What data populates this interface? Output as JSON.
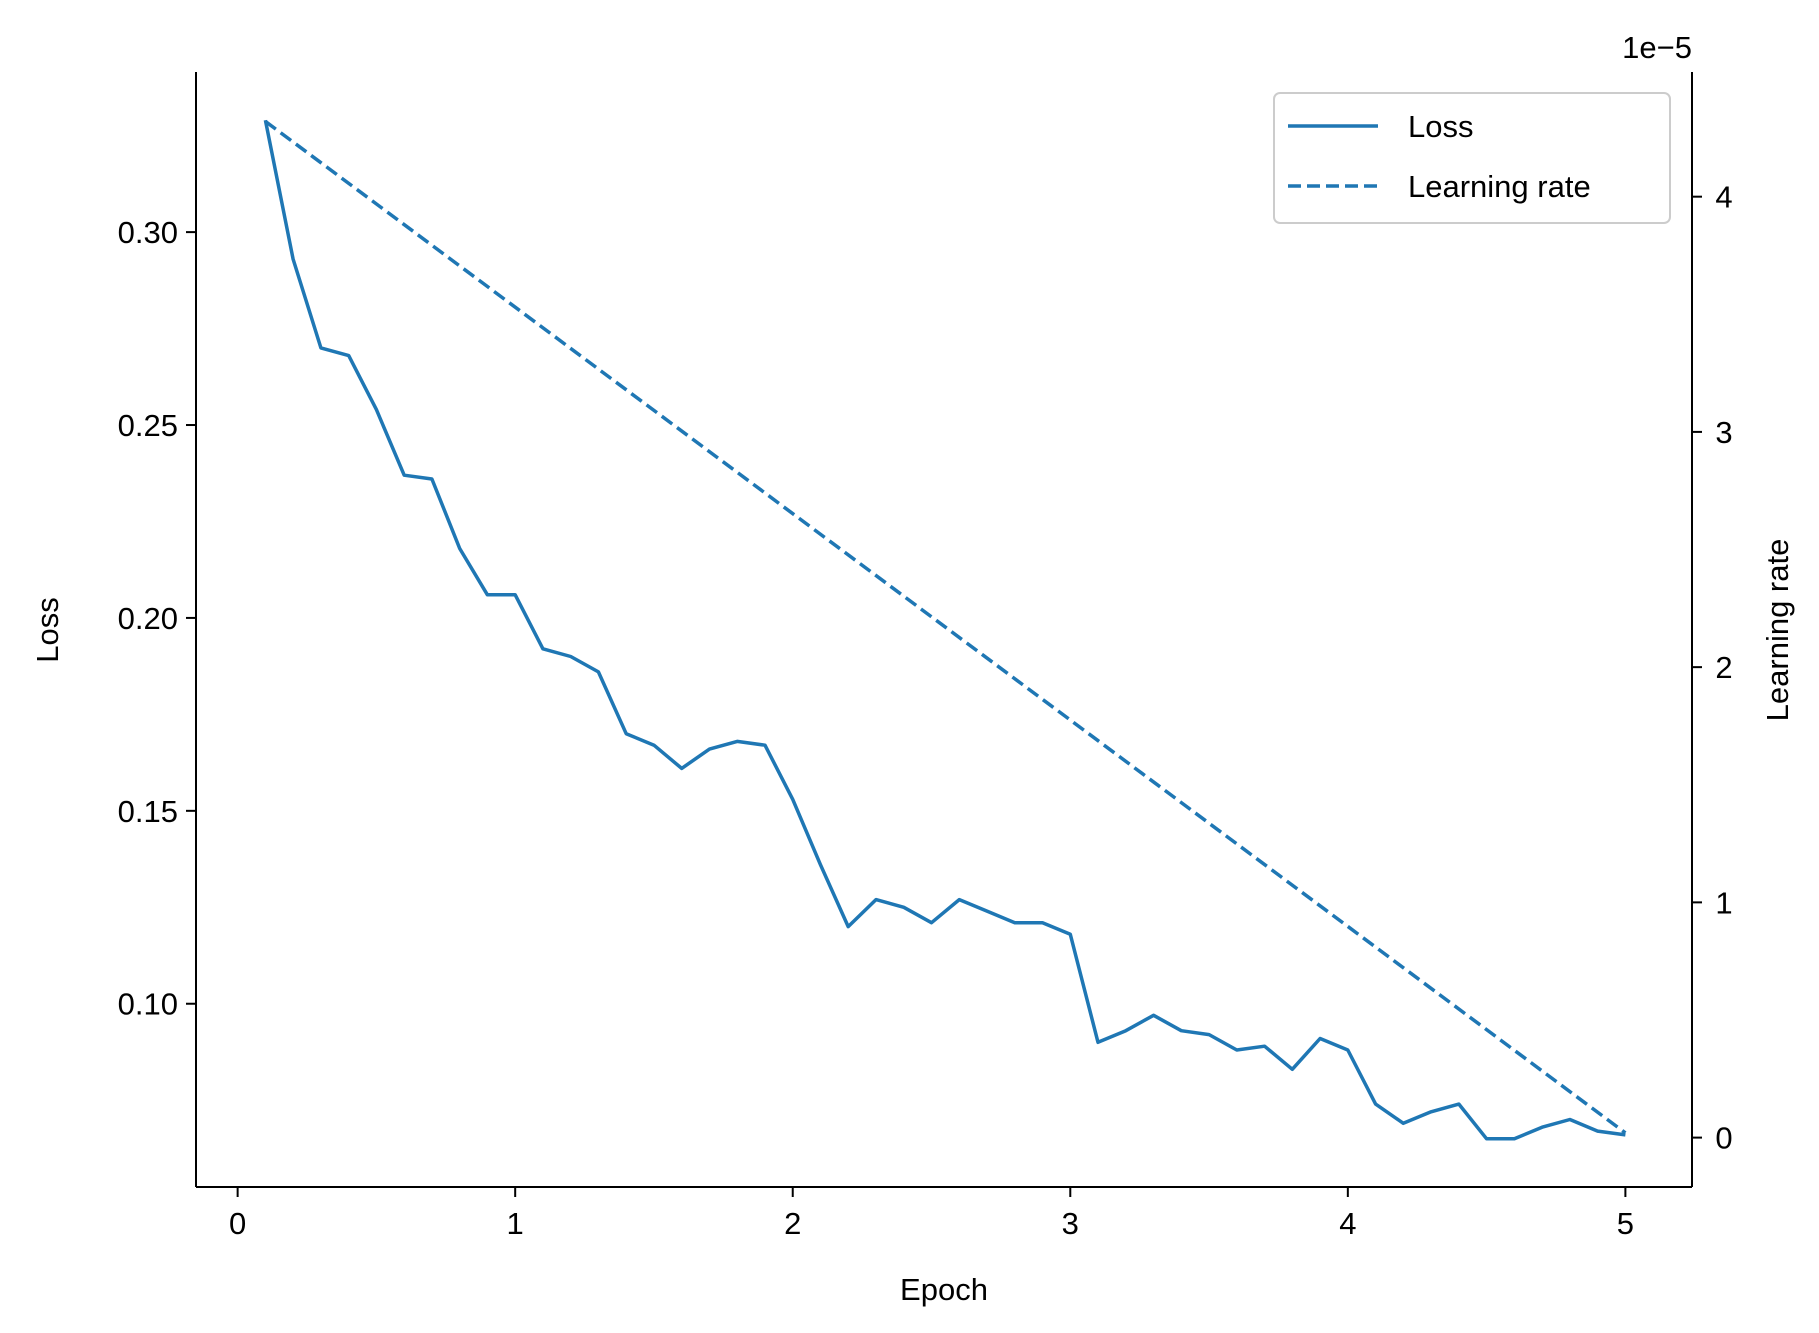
{
  "chart_data": {
    "type": "line",
    "title": "",
    "xlabel": "Epoch",
    "ylabel": "Loss",
    "y2label": "Learning rate",
    "y2_offset_label": "1e−5",
    "xlim": [
      -0.15,
      5.24
    ],
    "ylim": [
      0.0525,
      0.3415
    ],
    "y2lim": [
      -0.21,
      4.53
    ],
    "x_ticks": [
      0,
      1,
      2,
      3,
      4,
      5
    ],
    "x_tick_labels": [
      "0",
      "1",
      "2",
      "3",
      "4",
      "5"
    ],
    "y_ticks": [
      0.1,
      0.15,
      0.2,
      0.25,
      0.3
    ],
    "y_tick_labels": [
      "0.10",
      "0.15",
      "0.20",
      "0.25",
      "0.30"
    ],
    "y2_ticks": [
      0,
      1,
      2,
      3,
      4
    ],
    "y2_tick_labels": [
      "0",
      "1",
      "2",
      "3",
      "4"
    ],
    "grid": false,
    "legend_position": "top-right",
    "series": [
      {
        "name": "Loss",
        "axis": "left",
        "style": "solid",
        "color": "#1f77b4",
        "x": [
          0.1,
          0.2,
          0.3,
          0.4,
          0.5,
          0.6,
          0.7,
          0.8,
          0.9,
          1.0,
          1.1,
          1.2,
          1.3,
          1.4,
          1.5,
          1.6,
          1.7,
          1.8,
          1.9,
          2.0,
          2.1,
          2.2,
          2.3,
          2.4,
          2.5,
          2.6,
          2.7,
          2.8,
          2.9,
          3.0,
          3.1,
          3.2,
          3.3,
          3.4,
          3.5,
          3.6,
          3.7,
          3.8,
          3.9,
          4.0,
          4.1,
          4.2,
          4.3,
          4.4,
          4.5,
          4.6,
          4.7,
          4.8,
          4.9,
          5.0
        ],
        "y": [
          0.329,
          0.293,
          0.27,
          0.268,
          0.254,
          0.237,
          0.236,
          0.218,
          0.206,
          0.206,
          0.192,
          0.19,
          0.186,
          0.17,
          0.167,
          0.161,
          0.166,
          0.168,
          0.167,
          0.153,
          0.136,
          0.12,
          0.127,
          0.125,
          0.121,
          0.127,
          0.124,
          0.121,
          0.121,
          0.118,
          0.09,
          0.093,
          0.097,
          0.093,
          0.092,
          0.088,
          0.089,
          0.083,
          0.091,
          0.088,
          0.074,
          0.069,
          0.072,
          0.074,
          0.065,
          0.065,
          0.068,
          0.07,
          0.067,
          0.066
        ]
      },
      {
        "name": "Learning rate",
        "axis": "right",
        "style": "dashed",
        "color": "#1f77b4",
        "x": [
          0.1,
          5.0
        ],
        "y": [
          4.32,
          0.02
        ]
      }
    ]
  }
}
